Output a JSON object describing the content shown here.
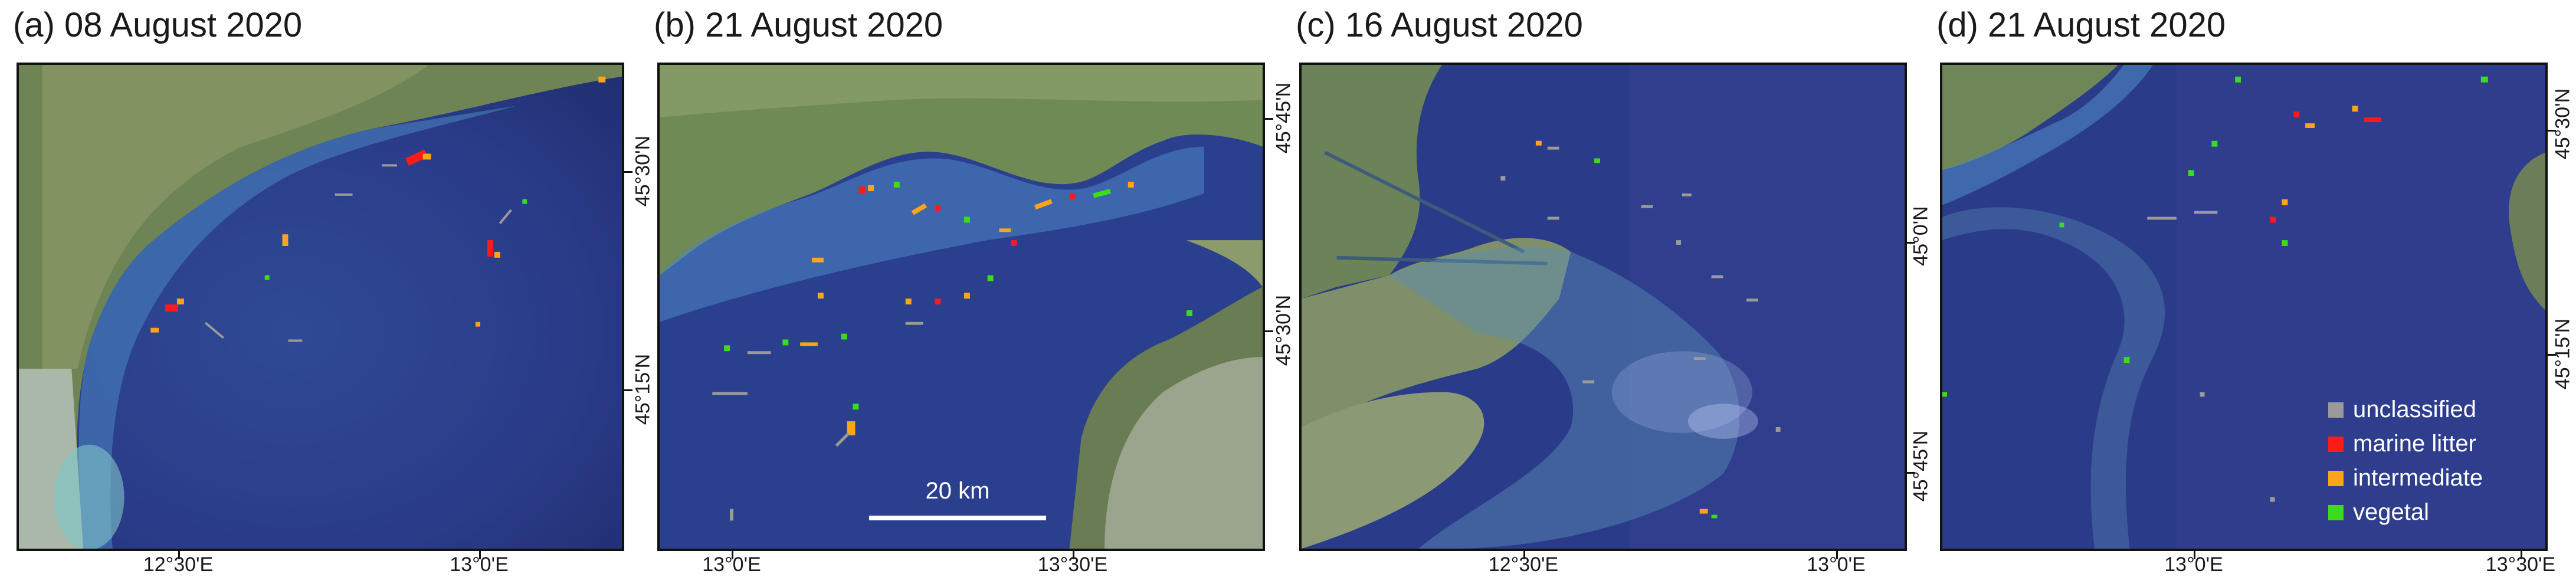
{
  "panels": [
    {
      "title": "(a) 08 August 2020",
      "lon_labels": [
        "12°30'E",
        "13°0'E"
      ],
      "lat_labels": [
        "45°30'N",
        "45°15'N"
      ]
    },
    {
      "title": "(b) 21 August 2020",
      "lon_labels": [
        "13°0'E",
        "13°30'E"
      ],
      "lat_labels": [
        "45°45'N",
        "45°30'N"
      ],
      "scalebar": "20 km"
    },
    {
      "title": "(c) 16 August 2020",
      "lon_labels": [
        "12°30'E",
        "13°0'E"
      ],
      "lat_labels": [
        "45°0'N",
        "45°45'N"
      ]
    },
    {
      "title": "(d) 21 August 2020",
      "lon_labels": [
        "13°0'E",
        "13°30'E"
      ],
      "lat_labels": [
        "45°30'N",
        "45°15'N"
      ]
    }
  ],
  "legend": [
    {
      "label": "unclassified",
      "color": "#9a9a9a"
    },
    {
      "label": "marine litter",
      "color": "#ff1a1a"
    },
    {
      "label": "intermediate",
      "color": "#ffa31a"
    },
    {
      "label": "vegetal",
      "color": "#3ddc1a"
    }
  ],
  "colors": {
    "sea": "#2c3f8c",
    "sea_light": "#3b6fb5",
    "land": "#7c8f5c",
    "coast_sand": "#cfd9cf"
  }
}
